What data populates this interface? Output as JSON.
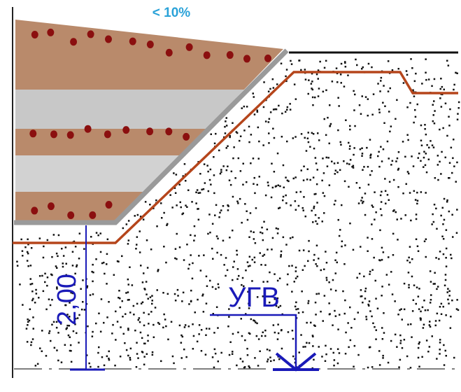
{
  "slope_label": "< 10%",
  "depth_label": "2,00",
  "water_level_label": "УГВ"
}
